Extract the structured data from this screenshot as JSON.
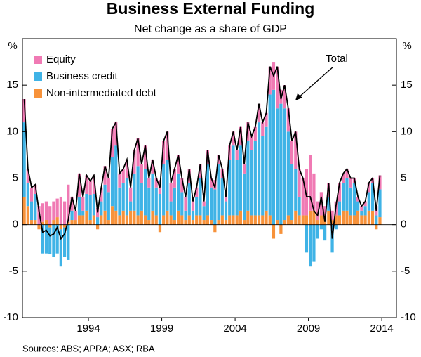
{
  "chart_data": {
    "type": "stacked-bar",
    "title": "Business External Funding",
    "subtitle": "Net change as a share of GDP",
    "y_label": "%",
    "source": "Sources:   ABS; APRA; ASX; RBA",
    "legend": "upper left",
    "xlim": [
      1990,
      2015.5
    ],
    "xticks": [
      {
        "value": 1994.5,
        "label": "1994"
      },
      {
        "value": 1999.5,
        "label": "1999"
      },
      {
        "value": 2004.5,
        "label": "2004"
      },
      {
        "value": 2009.5,
        "label": "2009"
      },
      {
        "value": 2014.5,
        "label": "2014"
      }
    ],
    "ylim": [
      -10,
      20
    ],
    "yticks": [
      -10,
      -5,
      0,
      5,
      10,
      15
    ],
    "x": [
      1990,
      1990.25,
      1990.5,
      1990.75,
      1991,
      1991.25,
      1991.5,
      1991.75,
      1992,
      1992.25,
      1992.5,
      1992.75,
      1993,
      1993.25,
      1993.5,
      1993.75,
      1994,
      1994.25,
      1994.5,
      1994.75,
      1995,
      1995.25,
      1995.5,
      1995.75,
      1996,
      1996.25,
      1996.5,
      1996.75,
      1997,
      1997.25,
      1997.5,
      1997.75,
      1998,
      1998.25,
      1998.5,
      1998.75,
      1999,
      1999.25,
      1999.5,
      1999.75,
      2000,
      2000.25,
      2000.5,
      2000.75,
      2001,
      2001.25,
      2001.5,
      2001.75,
      2002,
      2002.25,
      2002.5,
      2002.75,
      2003,
      2003.25,
      2003.5,
      2003.75,
      2004,
      2004.25,
      2004.5,
      2004.75,
      2005,
      2005.25,
      2005.5,
      2005.75,
      2006,
      2006.25,
      2006.5,
      2006.75,
      2007,
      2007.25,
      2007.5,
      2007.75,
      2008,
      2008.25,
      2008.5,
      2008.75,
      2009,
      2009.25,
      2009.5,
      2009.75,
      2010,
      2010.25,
      2010.5,
      2010.75,
      2011,
      2011.25,
      2011.5,
      2011.75,
      2012,
      2012.25,
      2012.5,
      2012.75,
      2013,
      2013.25,
      2013.5,
      2013.75,
      2014,
      2014.25
    ],
    "series": [
      {
        "name": "Equity",
        "color": "#f07ab4",
        "values": [
          2.5,
          1.5,
          1.5,
          1.0,
          2.0,
          2.0,
          2.0,
          2.0,
          2.0,
          2.0,
          3.0,
          2.5,
          4.0,
          1.5,
          1.0,
          2.5,
          1.5,
          2.0,
          1.5,
          2.0,
          1.0,
          1.5,
          2.0,
          1.5,
          3.0,
          2.5,
          1.5,
          1.5,
          2.0,
          1.5,
          2.5,
          3.0,
          2.0,
          2.5,
          1.0,
          1.5,
          1.0,
          1.5,
          2.5,
          3.0,
          2.0,
          2.0,
          2.0,
          1.5,
          1.5,
          1.5,
          1.0,
          1.0,
          1.5,
          0.5,
          1.5,
          1.0,
          1.0,
          1.0,
          1.0,
          0.5,
          1.5,
          1.5,
          1.0,
          2.0,
          1.0,
          2.0,
          1.5,
          1.5,
          2.0,
          1.5,
          1.5,
          3.0,
          3.0,
          4.5,
          1.5,
          2.5,
          2.5,
          2.5,
          4.0,
          3.0,
          4.0,
          5.0,
          6.0,
          4.0,
          2.0,
          2.5,
          1.0,
          1.5,
          1.0,
          1.5,
          2.0,
          1.0,
          1.0,
          1.0,
          0.5,
          0.5,
          0.5,
          0.5,
          1.0,
          0.5,
          1.0,
          1.5
        ]
      },
      {
        "name": "Business credit",
        "color": "#3fb3e6",
        "values": [
          8.0,
          2.5,
          2.0,
          2.8,
          0.0,
          -3.1,
          -3.1,
          -2.9,
          -3.5,
          -3.1,
          -4.0,
          -3.2,
          -3.8,
          1.0,
          0.0,
          2.0,
          0.5,
          1.8,
          2.7,
          2.3,
          0.8,
          1.5,
          2.8,
          3.0,
          5.3,
          7.0,
          3.0,
          3.0,
          4.0,
          1.0,
          4.0,
          5.3,
          3.0,
          5.0,
          3.5,
          4.0,
          3.0,
          3.3,
          5.5,
          5.5,
          1.5,
          3.5,
          4.0,
          2.5,
          1.0,
          3.5,
          1.0,
          2.0,
          4.0,
          1.5,
          5.5,
          3.5,
          3.8,
          6.0,
          4.0,
          2.0,
          6.0,
          7.5,
          6.0,
          7.0,
          5.0,
          7.5,
          7.0,
          8.0,
          10.0,
          8.5,
          9.0,
          13.0,
          14.5,
          12.0,
          13.0,
          12.0,
          9.0,
          6.0,
          4.5,
          2.0,
          0.0,
          -3.0,
          -4.5,
          -4.0,
          -1.5,
          -0.5,
          -1.7,
          1.5,
          -3.0,
          -0.5,
          1.5,
          3.0,
          3.5,
          3.0,
          3.5,
          1.0,
          0.5,
          1.0,
          2.0,
          3.0,
          1.0,
          3.0
        ]
      },
      {
        "name": "Non-intermediated debt",
        "color": "#f7923a",
        "values": [
          3.0,
          2.0,
          0.5,
          0.5,
          -0.5,
          0.3,
          0.5,
          -0.3,
          0.5,
          0.8,
          -0.5,
          -0.3,
          0.3,
          0.5,
          0.5,
          1.0,
          1.0,
          1.5,
          0.5,
          1.0,
          -0.5,
          1.0,
          1.5,
          0.5,
          2.0,
          1.5,
          1.0,
          1.5,
          1.0,
          1.5,
          1.5,
          1.0,
          1.5,
          1.0,
          0.5,
          1.5,
          1.0,
          -0.8,
          1.0,
          1.5,
          1.0,
          0.5,
          1.5,
          1.0,
          0.5,
          1.0,
          0.5,
          1.0,
          1.0,
          0.5,
          1.0,
          0.5,
          -0.8,
          0.5,
          1.0,
          0.5,
          1.0,
          1.0,
          1.0,
          1.5,
          0.5,
          1.5,
          1.0,
          1.0,
          1.0,
          1.0,
          1.5,
          1.0,
          -1.5,
          0.5,
          -1.0,
          0.5,
          1.0,
          0.5,
          1.5,
          1.0,
          1.0,
          1.0,
          1.5,
          1.5,
          0.5,
          1.0,
          1.0,
          1.5,
          0.5,
          1.0,
          1.0,
          1.5,
          1.5,
          1.0,
          1.0,
          1.5,
          1.0,
          1.0,
          1.5,
          1.5,
          -0.5,
          0.8
        ]
      }
    ],
    "total": {
      "name": "Total",
      "color": "#000000",
      "values": [
        13.5,
        6.0,
        4.0,
        4.3,
        1.5,
        -0.8,
        -0.6,
        -1.2,
        -1.0,
        -0.3,
        -1.5,
        -1.0,
        0.5,
        3.0,
        1.5,
        5.5,
        3.0,
        5.3,
        4.7,
        5.3,
        1.3,
        4.0,
        6.3,
        5.0,
        10.3,
        11.0,
        5.5,
        6.0,
        7.0,
        4.0,
        8.0,
        9.3,
        6.5,
        8.5,
        5.0,
        7.0,
        5.0,
        4.0,
        9.0,
        10.0,
        4.5,
        6.0,
        7.5,
        5.0,
        3.0,
        6.0,
        2.5,
        4.0,
        6.5,
        2.5,
        8.0,
        5.0,
        4.0,
        7.5,
        6.0,
        3.0,
        8.5,
        10.0,
        8.0,
        10.5,
        6.5,
        11.0,
        9.5,
        10.5,
        13.0,
        11.0,
        12.0,
        17.0,
        16.0,
        17.0,
        13.5,
        15.0,
        12.5,
        9.0,
        10.0,
        6.0,
        5.0,
        3.0,
        3.0,
        1.5,
        1.0,
        3.0,
        0.3,
        4.5,
        -1.5,
        2.0,
        4.5,
        5.5,
        6.0,
        5.0,
        5.0,
        3.0,
        2.0,
        2.5,
        4.5,
        5.0,
        1.5,
        5.3
      ]
    }
  }
}
